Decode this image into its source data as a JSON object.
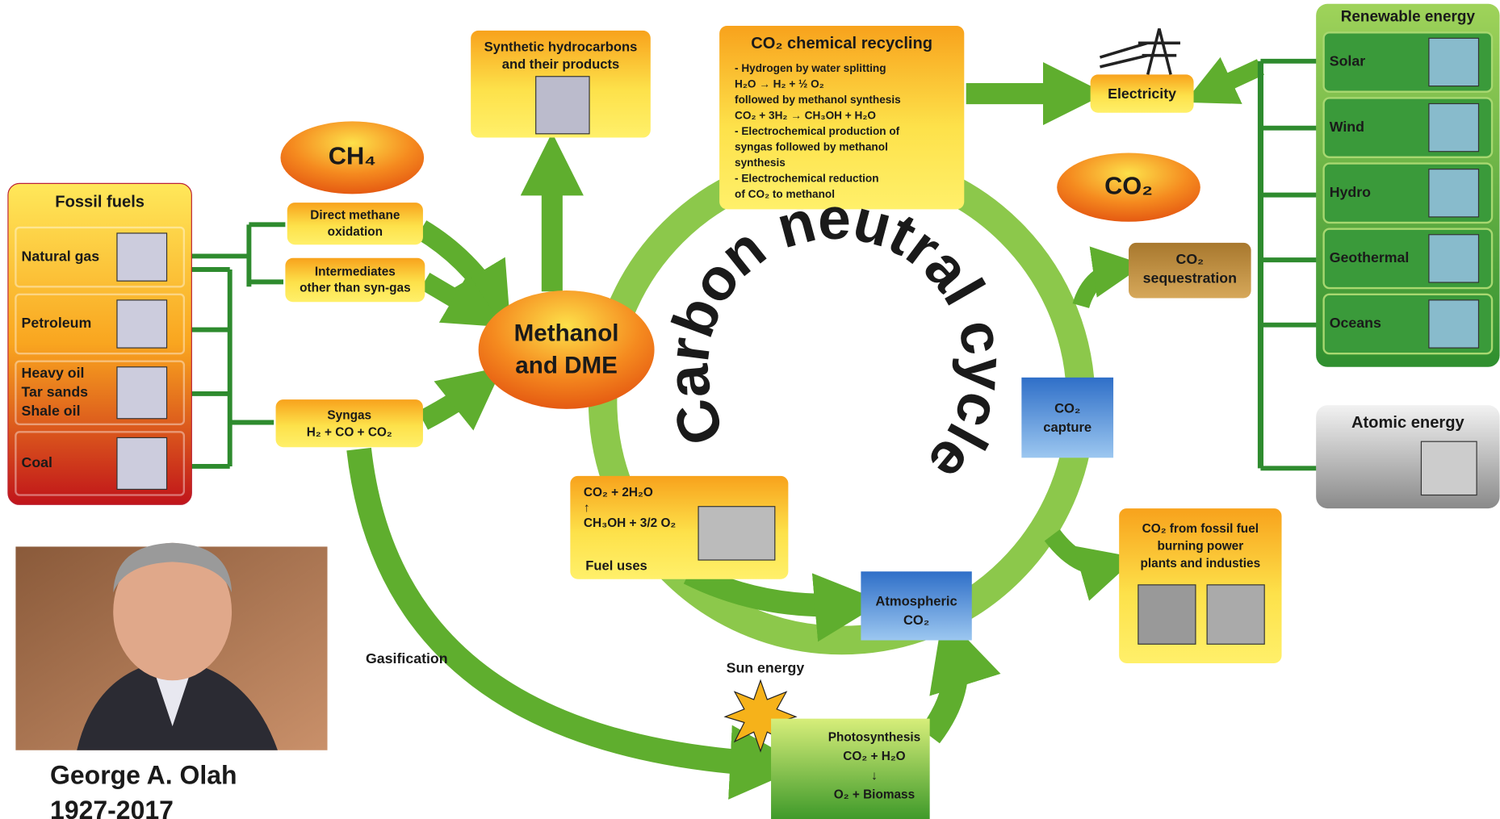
{
  "fossil_fuels": {
    "title": "Fossil fuels",
    "items": [
      [
        "Natural gas"
      ],
      [
        "Petroleum"
      ],
      [
        "Heavy oil",
        "Tar sands",
        "Shale oil"
      ],
      [
        "Coal"
      ]
    ]
  },
  "methane": {
    "label": "CH₄",
    "direct_oxidation": [
      "Direct methane",
      "oxidation"
    ],
    "intermediates": [
      "Intermediates",
      "other than syn-gas"
    ]
  },
  "syngas": [
    "Syngas",
    "H₂ + CO + CO₂"
  ],
  "methanol": [
    "Methanol",
    "and DME"
  ],
  "synthetic": [
    "Synthetic hydrocarbons",
    "and their products"
  ],
  "recycling": {
    "title": "CO₂ chemical recycling",
    "lines": [
      "- Hydrogen by water splitting",
      "H₂O → H₂ + ½ O₂",
      "followed by methanol synthesis",
      "CO₂ + 3H₂ → CH₃OH + H₂O",
      "- Electrochemical production of",
      "syngas followed by methanol",
      "synthesis",
      "- Electrochemical reduction",
      "of CO₂ to methanol"
    ]
  },
  "electricity": "Electricity",
  "co2": "CO₂",
  "renewable": {
    "title": "Renewable energy",
    "items": [
      "Solar",
      "Wind",
      "Hydro",
      "Geothermal",
      "Oceans"
    ]
  },
  "atomic": "Atomic energy",
  "sequestration": [
    "CO₂",
    "sequestration"
  ],
  "capture": [
    "CO₂",
    "capture"
  ],
  "fossil_burning": [
    "CO₂ from fossil fuel",
    "burning power",
    "plants and industies"
  ],
  "fuel_uses": {
    "reaction": [
      "CO₂ + 2H₂O",
      "↑",
      "CH₃OH + 3/2 O₂"
    ],
    "label": "Fuel uses"
  },
  "atmospheric": [
    "Atmospheric",
    "CO₂"
  ],
  "sun": "Sun energy",
  "photosynthesis": [
    "Photosynthesis",
    "CO₂ + H₂O",
    "↓",
    "O₂ + Biomass"
  ],
  "gasification": "Gasification",
  "cycle": "Carbon neutral cycle",
  "person": {
    "name": "George A. Olah",
    "years": "1927-2017"
  }
}
